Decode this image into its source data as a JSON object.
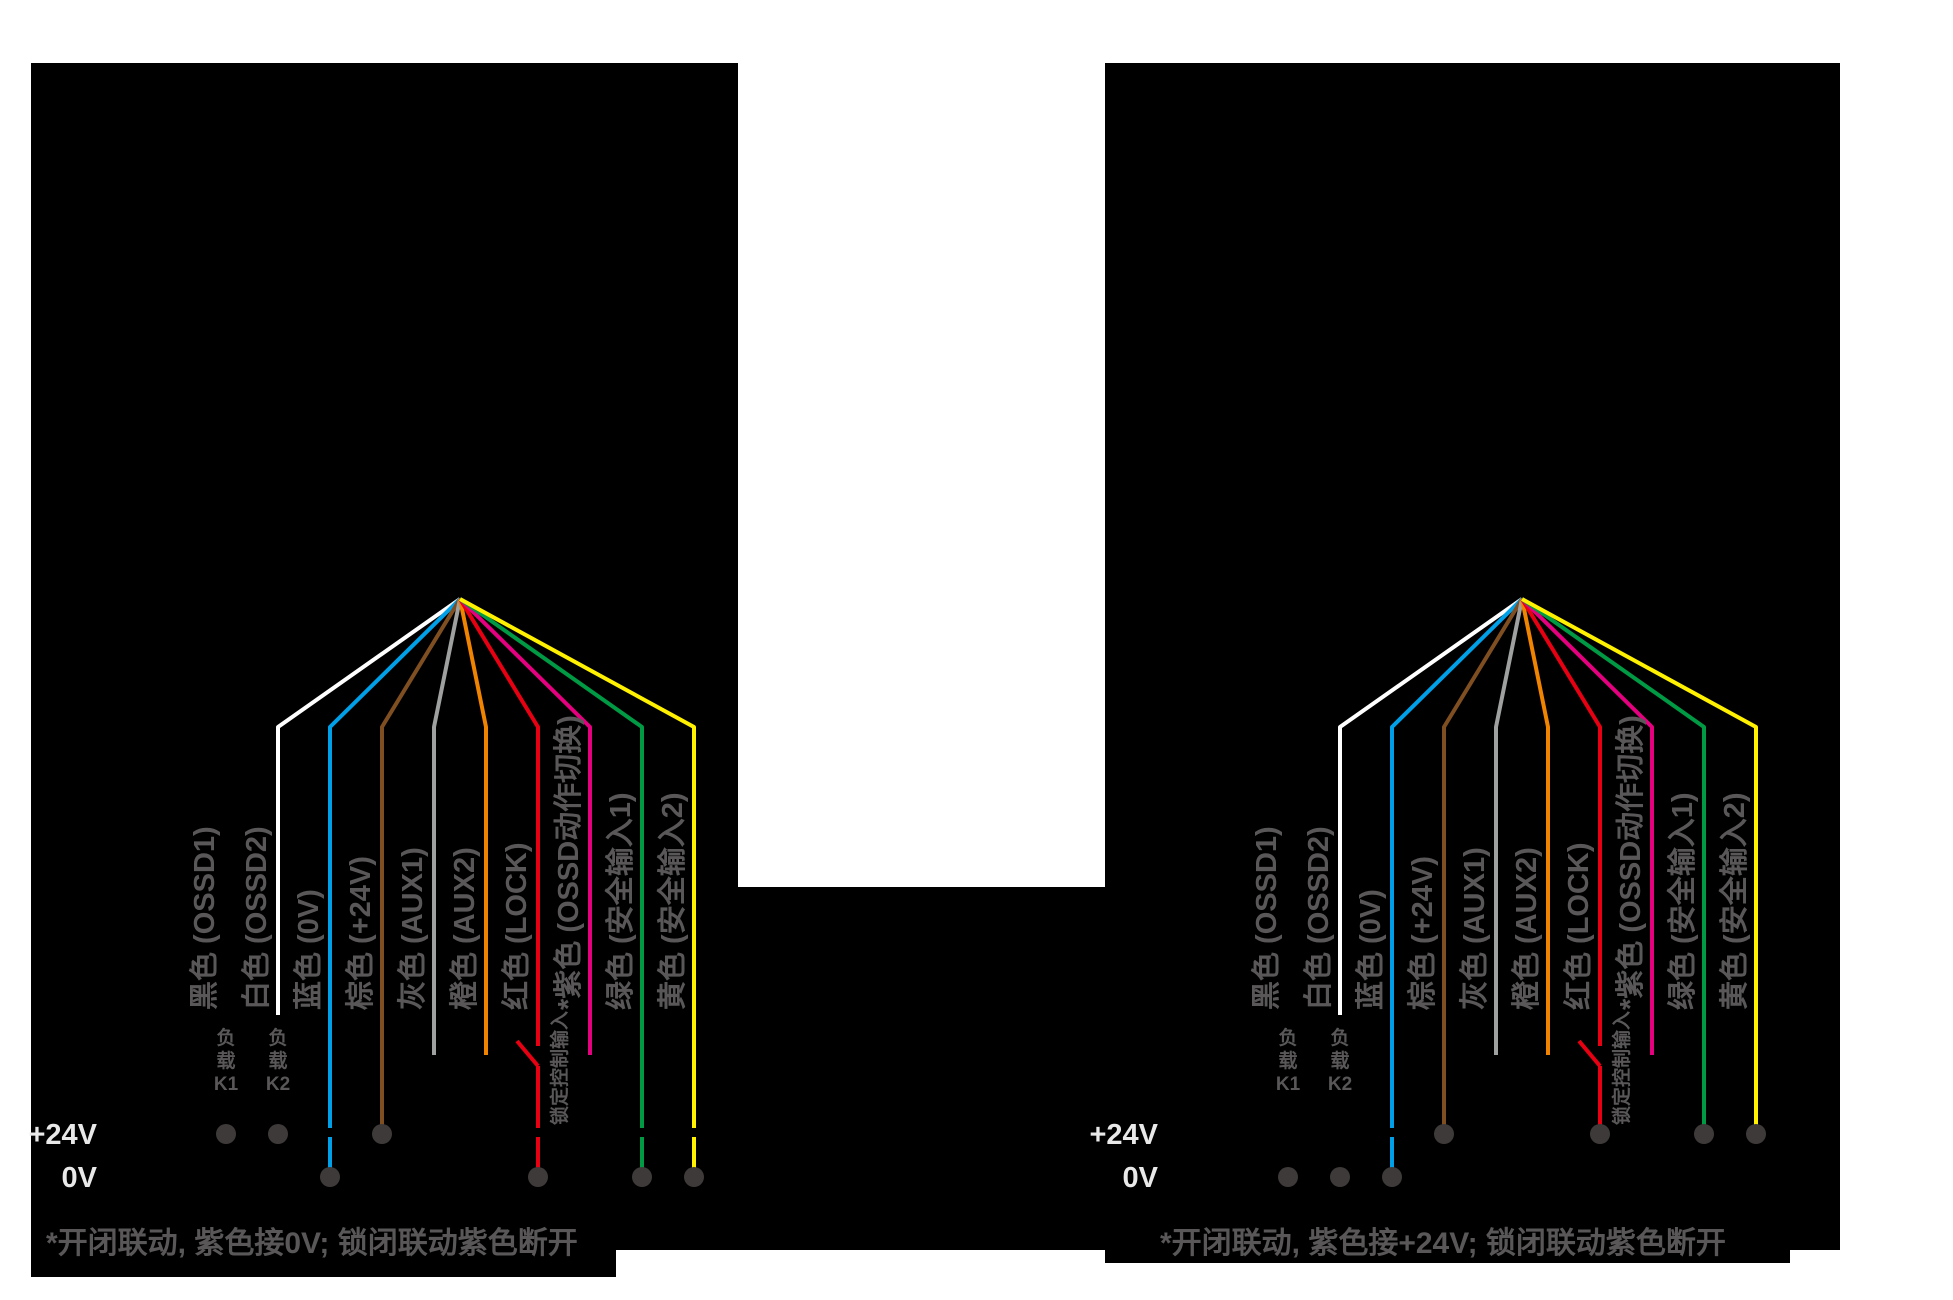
{
  "page": {
    "background": "#FFFFFF",
    "panel_background": "#000000",
    "label_text_color": "#595757",
    "rail_text_color": "#E9E9E9",
    "terminal_dot_color": "#3E3A39"
  },
  "panels": [
    {
      "id": "linkage-0v",
      "rail_labels": {
        "plus24": "+24V",
        "zero": "0V"
      },
      "switch_input_label": "锁定控制输入",
      "footnote": "*开闭联动, 紫色接0V; 锁闭联动紫色断开",
      "loads_connect_to": "+24V",
      "loads": {
        "K1": [
          "负",
          "载",
          "K1"
        ],
        "K2": [
          "负",
          "载",
          "K2"
        ]
      },
      "wires": [
        {
          "id": "black",
          "label": "黑色 (OSSD1)",
          "color": "#000000",
          "connection": "load-K1"
        },
        {
          "id": "white",
          "label": "白色 (OSSD2)",
          "color": "#FFFFFF",
          "connection": "load-K2"
        },
        {
          "id": "blue",
          "label": "蓝色 (0V)",
          "color": "#00A0E9",
          "connection": "0V"
        },
        {
          "id": "brown",
          "label": "棕色 (+24V)",
          "color": "#7F4F21",
          "connection": "+24V"
        },
        {
          "id": "gray",
          "label": "灰色 (AUX1)",
          "color": "#9FA0A0",
          "connection": "open"
        },
        {
          "id": "orange",
          "label": "橙色 (AUX2)",
          "color": "#F08300",
          "connection": "open"
        },
        {
          "id": "red",
          "label": "红色 (LOCK)",
          "color": "#E60012",
          "connection": "switch-0V"
        },
        {
          "id": "purple",
          "label": "*紫色 (OSSD动作切换)",
          "color": "#E4007F",
          "connection": "open"
        },
        {
          "id": "green",
          "label": "绿色 (安全输入1)",
          "color": "#009944",
          "connection": "0V"
        },
        {
          "id": "yellow",
          "label": "黄色 (安全输入2)",
          "color": "#FFF100",
          "connection": "0V"
        }
      ]
    },
    {
      "id": "linkage-24v",
      "rail_labels": {
        "plus24": "+24V",
        "zero": "0V"
      },
      "switch_input_label": "锁定控制输入",
      "footnote": "*开闭联动, 紫色接+24V; 锁闭联动紫色断开",
      "loads_connect_to": "0V",
      "loads": {
        "K1": [
          "负",
          "载",
          "K1"
        ],
        "K2": [
          "负",
          "载",
          "K2"
        ]
      },
      "wires": [
        {
          "id": "black",
          "label": "黑色 (OSSD1)",
          "color": "#000000",
          "connection": "load-K1"
        },
        {
          "id": "white",
          "label": "白色 (OSSD2)",
          "color": "#FFFFFF",
          "connection": "load-K2"
        },
        {
          "id": "blue",
          "label": "蓝色 (0V)",
          "color": "#00A0E9",
          "connection": "0V"
        },
        {
          "id": "brown",
          "label": "棕色 (+24V)",
          "color": "#7F4F21",
          "connection": "+24V"
        },
        {
          "id": "gray",
          "label": "灰色 (AUX1)",
          "color": "#9FA0A0",
          "connection": "open"
        },
        {
          "id": "orange",
          "label": "橙色 (AUX2)",
          "color": "#F08300",
          "connection": "open"
        },
        {
          "id": "red",
          "label": "红色 (LOCK)",
          "color": "#E60012",
          "connection": "switch-+24V"
        },
        {
          "id": "purple",
          "label": "*紫色 (OSSD动作切换)",
          "color": "#E4007F",
          "connection": "open"
        },
        {
          "id": "green",
          "label": "绿色 (安全输入1)",
          "color": "#009944",
          "connection": "+24V"
        },
        {
          "id": "yellow",
          "label": "黄色 (安全输入2)",
          "color": "#FFF100",
          "connection": "+24V"
        }
      ]
    }
  ]
}
